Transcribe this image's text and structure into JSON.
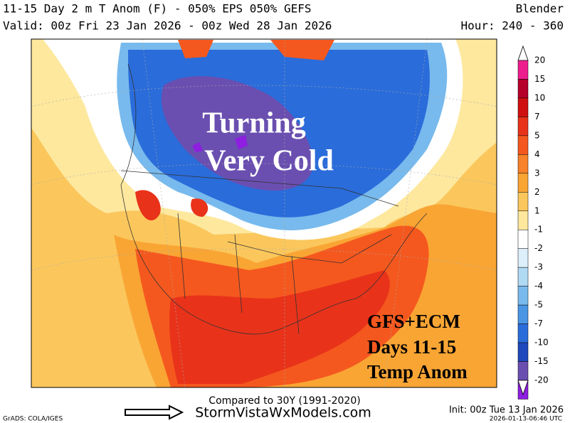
{
  "header": {
    "title": "11-15 Day 2 m T Anom (F) - 050% EPS 050% GEFS",
    "source": "Blender",
    "valid": "Valid: 00z Fri 23 Jan 2026 - 00z Wed 28 Jan 2026",
    "hour": "Hour: 240 - 360"
  },
  "annotations": {
    "main": [
      "Turning",
      "Very Cold"
    ],
    "note": [
      "GFS+ECM",
      "Days 11-15",
      "Temp Anom"
    ]
  },
  "colorbar": {
    "labels": [
      "20",
      "15",
      "10",
      "7",
      "5",
      "4",
      "3",
      "2",
      "1",
      "-1",
      "-2",
      "-3",
      "-4",
      "-5",
      "-7",
      "-10",
      "-15",
      "-20"
    ],
    "colors": [
      "#ffffff",
      "#ee1d8e",
      "#b5002a",
      "#d01010",
      "#e8331a",
      "#f5581e",
      "#f7822a",
      "#f9a534",
      "#fbc75c",
      "#fde89e",
      "#ffffff",
      "#dcefFb",
      "#b0d9f4",
      "#78baed",
      "#4a96e5",
      "#2a6cda",
      "#1e48bc",
      "#6a4fb0",
      "#8e1ee0",
      "#ffffff"
    ]
  },
  "footer": {
    "compared": "Compared to 30Y (1991-2020)",
    "site": "StormVistaWxModels.com",
    "init": "Init: 00z Tue 13 Jan 2026",
    "grads": "GrADS: COLA/IGES",
    "stamp": "2026-01-13-06:46 UTC"
  }
}
